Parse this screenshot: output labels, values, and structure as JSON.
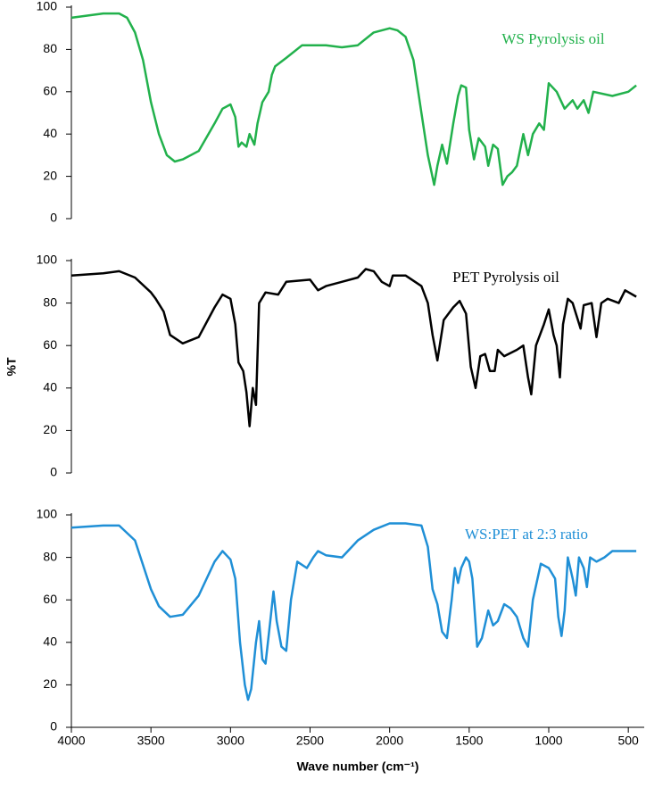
{
  "chart_data": [
    {
      "type": "line",
      "xlim": [
        4000,
        400
      ],
      "ylim": [
        0,
        100
      ],
      "yticks": [
        0,
        20,
        40,
        60,
        80,
        100
      ],
      "x": [
        4000,
        3900,
        3800,
        3700,
        3650,
        3600,
        3550,
        3500,
        3450,
        3400,
        3350,
        3300,
        3200,
        3100,
        3050,
        3000,
        2970,
        2950,
        2930,
        2900,
        2880,
        2850,
        2830,
        2800,
        2760,
        2740,
        2720,
        2650,
        2550,
        2400,
        2300,
        2200,
        2100,
        2000,
        1950,
        1900,
        1850,
        1800,
        1760,
        1720,
        1700,
        1670,
        1640,
        1600,
        1570,
        1550,
        1520,
        1500,
        1470,
        1440,
        1400,
        1380,
        1350,
        1320,
        1290,
        1260,
        1230,
        1200,
        1160,
        1130,
        1100,
        1060,
        1030,
        1000,
        950,
        900,
        850,
        820,
        780,
        750,
        720,
        600,
        500,
        450
      ],
      "series": [
        {
          "name": "WS Pyrolysis oil",
          "color": "#22b14c",
          "values": [
            95,
            96,
            97,
            97,
            95,
            88,
            75,
            55,
            40,
            30,
            27,
            28,
            32,
            45,
            52,
            54,
            48,
            34,
            36,
            34,
            40,
            35,
            45,
            55,
            60,
            68,
            72,
            76,
            82,
            82,
            81,
            82,
            88,
            90,
            89,
            86,
            75,
            50,
            30,
            16,
            25,
            35,
            26,
            45,
            58,
            63,
            62,
            42,
            28,
            38,
            34,
            25,
            35,
            33,
            16,
            20,
            22,
            25,
            40,
            30,
            40,
            45,
            42,
            64,
            60,
            52,
            56,
            52,
            56,
            50,
            60,
            58,
            60,
            63
          ]
        }
      ]
    },
    {
      "type": "line",
      "xlim": [
        4000,
        400
      ],
      "ylim": [
        0,
        100
      ],
      "yticks": [
        0,
        20,
        40,
        60,
        80,
        100
      ],
      "ylabel": "%T",
      "x": [
        4000,
        3800,
        3700,
        3600,
        3500,
        3470,
        3420,
        3380,
        3300,
        3200,
        3100,
        3050,
        3000,
        2970,
        2950,
        2920,
        2900,
        2880,
        2860,
        2840,
        2820,
        2780,
        2700,
        2650,
        2500,
        2450,
        2400,
        2200,
        2150,
        2100,
        2050,
        2000,
        1980,
        1900,
        1800,
        1760,
        1730,
        1700,
        1660,
        1600,
        1560,
        1520,
        1490,
        1460,
        1430,
        1400,
        1370,
        1340,
        1320,
        1280,
        1200,
        1160,
        1130,
        1110,
        1080,
        1030,
        1000,
        970,
        950,
        930,
        910,
        880,
        850,
        800,
        780,
        730,
        700,
        670,
        630,
        560,
        520,
        450
      ],
      "series": [
        {
          "name": "PET Pyrolysis oil",
          "color": "#000000",
          "values": [
            93,
            94,
            95,
            92,
            85,
            82,
            76,
            65,
            61,
            64,
            78,
            84,
            82,
            70,
            52,
            48,
            38,
            22,
            40,
            32,
            80,
            85,
            84,
            90,
            91,
            86,
            88,
            92,
            96,
            95,
            90,
            88,
            93,
            93,
            88,
            80,
            65,
            53,
            72,
            78,
            81,
            75,
            50,
            40,
            55,
            56,
            48,
            48,
            58,
            55,
            58,
            60,
            45,
            37,
            60,
            70,
            77,
            65,
            60,
            45,
            70,
            82,
            80,
            68,
            79,
            80,
            64,
            80,
            82,
            80,
            86,
            83
          ]
        }
      ]
    },
    {
      "type": "line",
      "xlim": [
        4000,
        400
      ],
      "ylim": [
        0,
        100
      ],
      "yticks": [
        0,
        20,
        40,
        60,
        80,
        100
      ],
      "xticks": [
        4000,
        3500,
        3000,
        2500,
        2000,
        1500,
        1000,
        500
      ],
      "xlabel": "Wave number (cm⁻¹)",
      "x": [
        4000,
        3800,
        3700,
        3600,
        3500,
        3450,
        3380,
        3300,
        3200,
        3100,
        3050,
        3000,
        2970,
        2940,
        2910,
        2890,
        2870,
        2840,
        2820,
        2800,
        2780,
        2750,
        2730,
        2710,
        2680,
        2650,
        2620,
        2580,
        2520,
        2480,
        2450,
        2400,
        2300,
        2200,
        2100,
        2000,
        1900,
        1800,
        1760,
        1730,
        1700,
        1670,
        1640,
        1610,
        1590,
        1570,
        1550,
        1520,
        1500,
        1480,
        1450,
        1420,
        1380,
        1350,
        1320,
        1280,
        1240,
        1200,
        1160,
        1130,
        1100,
        1050,
        1000,
        960,
        940,
        920,
        900,
        880,
        850,
        830,
        810,
        780,
        760,
        740,
        700,
        650,
        600,
        500,
        450
      ],
      "series": [
        {
          "name": "WS:PET at 2:3 ratio",
          "color": "#1f8fd6",
          "values": [
            94,
            95,
            95,
            88,
            65,
            57,
            52,
            53,
            62,
            78,
            83,
            79,
            70,
            40,
            20,
            13,
            18,
            40,
            50,
            32,
            30,
            50,
            64,
            50,
            38,
            36,
            60,
            78,
            75,
            80,
            83,
            81,
            80,
            88,
            93,
            96,
            96,
            95,
            85,
            65,
            58,
            45,
            42,
            60,
            75,
            68,
            75,
            80,
            78,
            70,
            38,
            42,
            55,
            48,
            50,
            58,
            56,
            52,
            42,
            38,
            60,
            77,
            75,
            70,
            52,
            43,
            55,
            80,
            70,
            62,
            80,
            75,
            66,
            80,
            78,
            80,
            83,
            83,
            83
          ]
        }
      ]
    }
  ]
}
